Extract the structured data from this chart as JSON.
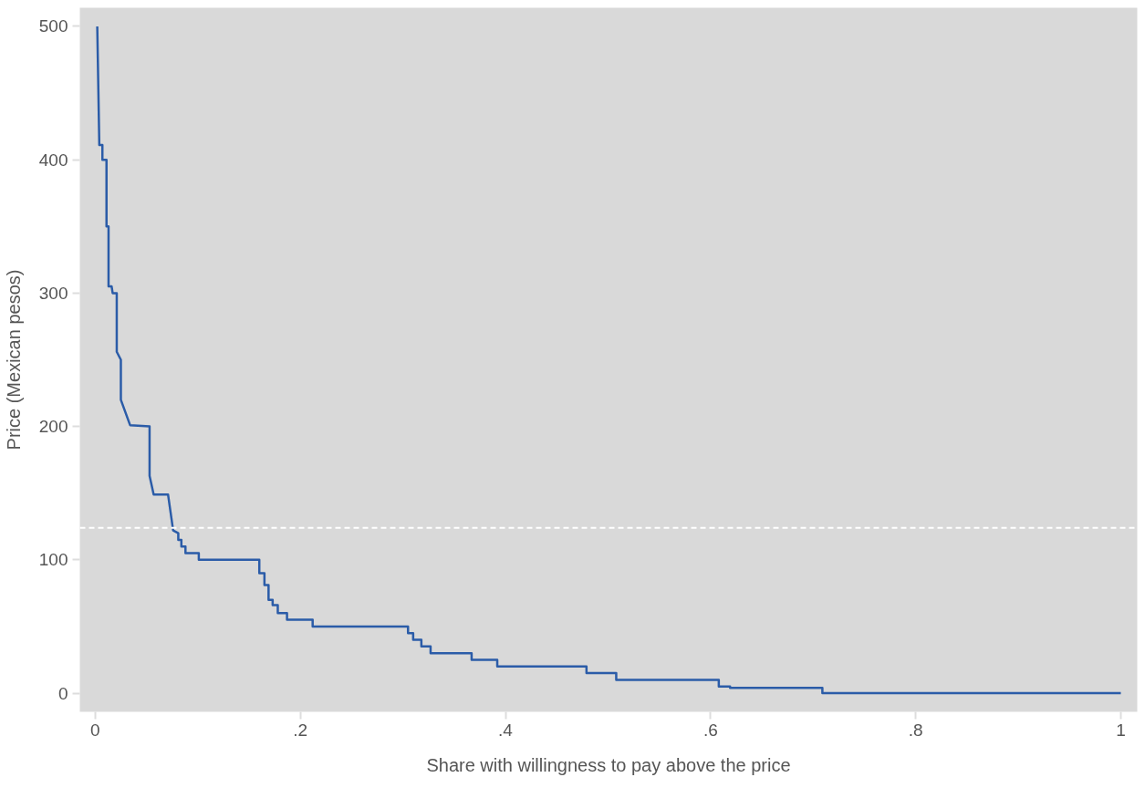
{
  "chart_data": {
    "type": "line",
    "xlabel": "Share with willingness to pay above the price",
    "ylabel": "Price (Mexican pesos)",
    "xlim": [
      -0.015,
      1.016
    ],
    "ylim": [
      -14,
      514
    ],
    "xticks": [
      0,
      {
        "value": 0.2,
        "label": ".2"
      },
      {
        "value": 0.4,
        "label": ".4"
      },
      {
        "value": 0.6,
        "label": ".6"
      },
      {
        "value": 0.8,
        "label": ".8"
      },
      1
    ],
    "yticks": [
      0,
      100,
      200,
      300,
      400,
      500
    ],
    "grid": false,
    "marker": "none",
    "line_style": "solid",
    "ref_lines": [
      {
        "axis": "y",
        "value": 124,
        "color": "#ffffff",
        "line_style": "dashed"
      }
    ],
    "series": [
      {
        "color": "#2b5ca8",
        "x": [
          0.002,
          0.004,
          0.007,
          0.007,
          0.011,
          0.011,
          0.013,
          0.013,
          0.016,
          0.017,
          0.021,
          0.021,
          0.025,
          0.025,
          0.034,
          0.053,
          0.053,
          0.057,
          0.071,
          0.076,
          0.081,
          0.081,
          0.084,
          0.084,
          0.088,
          0.088,
          0.101,
          0.101,
          0.16,
          0.16,
          0.165,
          0.165,
          0.169,
          0.169,
          0.173,
          0.173,
          0.178,
          0.178,
          0.187,
          0.187,
          0.212,
          0.212,
          0.305,
          0.305,
          0.31,
          0.31,
          0.318,
          0.318,
          0.327,
          0.327,
          0.367,
          0.367,
          0.392,
          0.392,
          0.479,
          0.479,
          0.508,
          0.508,
          0.608,
          0.608,
          0.619,
          0.619,
          0.709,
          0.709,
          1.0
        ],
        "values": [
          500,
          411,
          411,
          400,
          400,
          350,
          350,
          305,
          305,
          300,
          300,
          256,
          250,
          220,
          201,
          200,
          163,
          149,
          149,
          122,
          120,
          115,
          115,
          110,
          110,
          105,
          105,
          100,
          100,
          90,
          90,
          81,
          81,
          70,
          70,
          66,
          66,
          60,
          60,
          55,
          55,
          50,
          50,
          45,
          45,
          40,
          40,
          35,
          35,
          30,
          30,
          25,
          25,
          20,
          20,
          15,
          15,
          10,
          10,
          5,
          5,
          4,
          4,
          0,
          0
        ]
      }
    ]
  }
}
